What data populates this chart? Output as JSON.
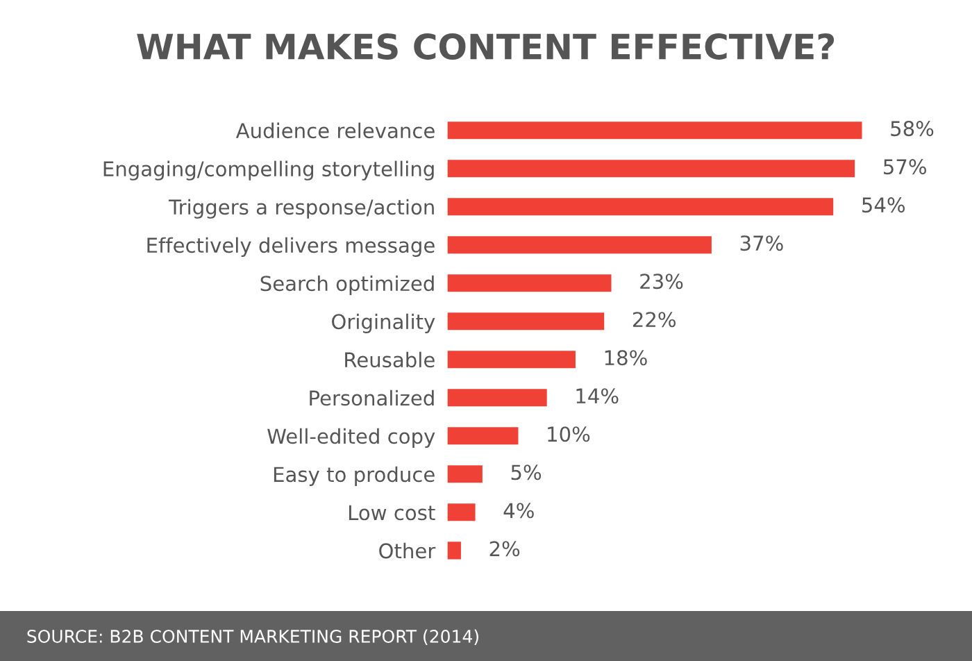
{
  "chart_data": {
    "type": "bar",
    "orientation": "horizontal",
    "title": "WHAT MAKES CONTENT EFFECTIVE?",
    "categories": [
      "Audience relevance",
      "Engaging/compelling storytelling",
      "Triggers a response/action",
      "Effectively delivers message",
      "Search optimized",
      "Originality",
      "Reusable",
      "Personalized",
      "Well-edited copy",
      "Easy to produce",
      "Low cost",
      "Other"
    ],
    "values": [
      58,
      57,
      54,
      37,
      23,
      22,
      18,
      14,
      10,
      5,
      4,
      2
    ],
    "value_labels": [
      "58%",
      "57%",
      "54%",
      "37%",
      "23%",
      "22%",
      "18%",
      "14%",
      "10%",
      "5%",
      "4%",
      "2%"
    ],
    "color": "#ef4136",
    "annotations": [
      "SOURCE: B2B CONTENT MARKETING REPORT (2014)"
    ],
    "grid": false,
    "legend": false,
    "tick_labels": "y"
  }
}
